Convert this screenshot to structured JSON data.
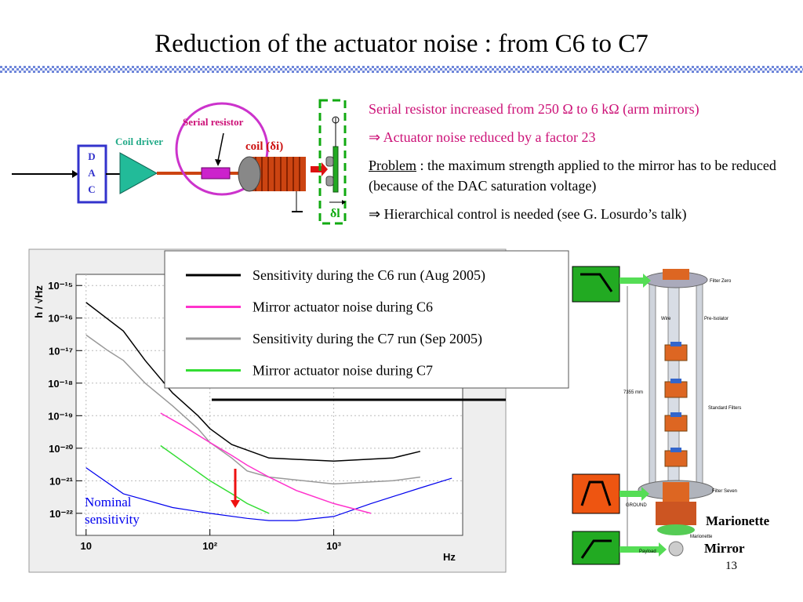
{
  "title": "Reduction of the actuator noise : from C6 to C7",
  "diagram": {
    "serial_resistor": "Serial resistor",
    "coil_driver": "Coil driver",
    "dac": [
      "D",
      "A",
      "C"
    ],
    "coil": "coil (δi)",
    "displacement": "δl"
  },
  "notes": {
    "line1": "Serial resistor increased from 250 Ω to 6 kΩ (arm mirrors)",
    "line2": "⇒ Actuator noise reduced by a factor 23",
    "problem_word": "Problem",
    "problem_text": " : the maximum strength applied to the mirror has to be reduced (because of the DAC saturation voltage)",
    "line4": "⇒ Hierarchical control is needed (see G. Losurdo’s talk)"
  },
  "chart": {
    "type": "line",
    "log_x": true,
    "log_y": true,
    "grid": true,
    "y_label": "h / √Hz",
    "x_label": "Hz",
    "xlim": [
      8.3,
      11000
    ],
    "ylim": [
      2.1e-23,
      2.2e-15
    ],
    "xticks": [
      10,
      {
        "value": 100,
        "label": "10²"
      },
      {
        "value": 1000,
        "label": "10³"
      }
    ],
    "yticks": [
      {
        "value": 1e-15,
        "label": "10⁻¹⁵"
      },
      {
        "value": 1e-16,
        "label": "10⁻¹⁶"
      },
      {
        "value": 1e-17,
        "label": "10⁻¹⁷"
      },
      {
        "value": 1e-18,
        "label": "10⁻¹⁸"
      },
      {
        "value": 1e-19,
        "label": "10⁻¹⁹"
      },
      {
        "value": 1e-20,
        "label": "10⁻²⁰"
      },
      {
        "value": 1e-21,
        "label": "10⁻²¹"
      },
      {
        "value": 1e-22,
        "label": "10⁻²²"
      }
    ],
    "series": [
      {
        "name": "Sensitivity during the C6 run (Aug 2005)",
        "color": "#000000",
        "x": [
          10,
          20,
          30,
          50,
          80,
          100,
          150,
          300,
          1000,
          3000,
          5000
        ],
        "values": [
          3e-16,
          4e-17,
          5e-18,
          5e-19,
          1e-19,
          4e-20,
          1.3e-20,
          5e-21,
          4e-21,
          5e-21,
          8e-21
        ]
      },
      {
        "name": "Mirror actuator noise during C6",
        "color": "#ff33cc",
        "x": [
          40,
          60,
          100,
          150,
          200,
          300,
          500,
          1000,
          2000
        ],
        "values": [
          1.2e-19,
          5e-20,
          1.5e-20,
          6e-21,
          3e-21,
          1.3e-21,
          5e-22,
          2e-22,
          1e-22
        ]
      },
      {
        "name": "Sensitivity during the C7 run (Sep 2005)",
        "color": "#999999",
        "x": [
          10,
          15,
          20,
          30,
          50,
          80,
          100,
          150,
          200,
          300,
          1000,
          3000,
          5000
        ],
        "values": [
          3e-17,
          1e-17,
          5e-18,
          1e-18,
          2e-19,
          4e-20,
          1.5e-20,
          5e-21,
          2e-21,
          1.3e-21,
          8e-22,
          1e-21,
          1.3e-21
        ]
      },
      {
        "name": "Mirror actuator noise during C7",
        "color": "#33dd33",
        "x": [
          40,
          60,
          100,
          150,
          200,
          300
        ],
        "values": [
          1.2e-20,
          4e-21,
          1e-21,
          4e-22,
          2e-22,
          1e-22
        ]
      }
    ],
    "reference": {
      "label": "Nominal sensitivity",
      "color": "#0000ee",
      "x": [
        10,
        20,
        50,
        100,
        200,
        300,
        500,
        1000,
        2000,
        5000,
        9000
      ],
      "values": [
        2.5e-21,
        4e-22,
        1.5e-22,
        1e-22,
        7e-23,
        6e-23,
        6e-23,
        8e-23,
        2e-22,
        6e-22,
        1.2e-21
      ]
    }
  },
  "suspension": {
    "labels": [
      "Filter Zero",
      "Pre-Isolator",
      "Wire",
      "Standard Filters",
      "Filter Seven",
      "GROUND",
      "Marionette",
      "7355 mm",
      "Payload"
    ],
    "marionette": "Marionette",
    "mirror": "Mirror"
  },
  "page_number": "13"
}
